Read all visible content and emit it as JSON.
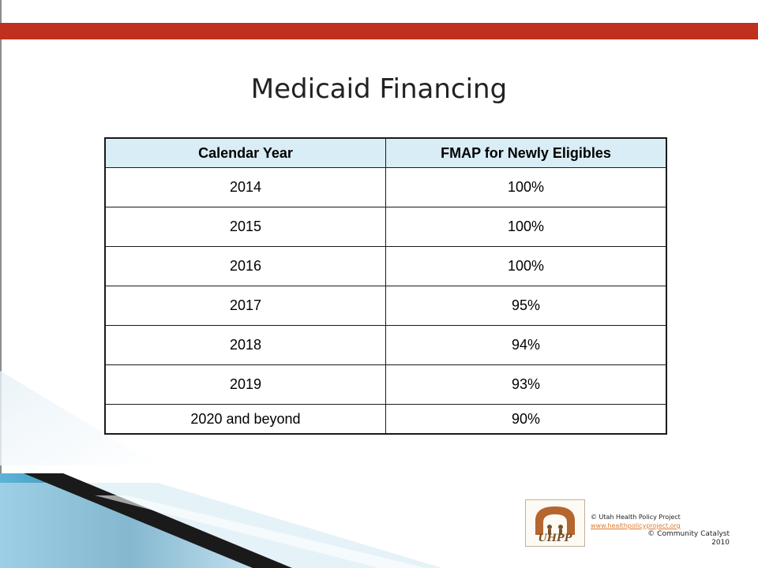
{
  "slide": {
    "title": "Medicaid Financing"
  },
  "table": {
    "headers": [
      "Calendar Year",
      "FMAP for Newly Eligibles"
    ],
    "rows": [
      [
        "2014",
        "100%"
      ],
      [
        "2015",
        "100%"
      ],
      [
        "2016",
        "100%"
      ],
      [
        "2017",
        "95%"
      ],
      [
        "2018",
        "94%"
      ],
      [
        "2019",
        "93%"
      ],
      [
        "2020 and beyond",
        "90%"
      ]
    ]
  },
  "footer": {
    "logo_text": "UHPP",
    "copyright_uhpp": "© Utah Health Policy Project",
    "website": "www.healthpolicyproject.org",
    "copyright_cc": "© Community Catalyst",
    "year": "2010"
  },
  "colors": {
    "top_bar": "#c0301f",
    "header_fill": "#d9edf6",
    "ribbon_dark": "#1a1a1a",
    "ribbon_blue": "#2a7fa6"
  }
}
